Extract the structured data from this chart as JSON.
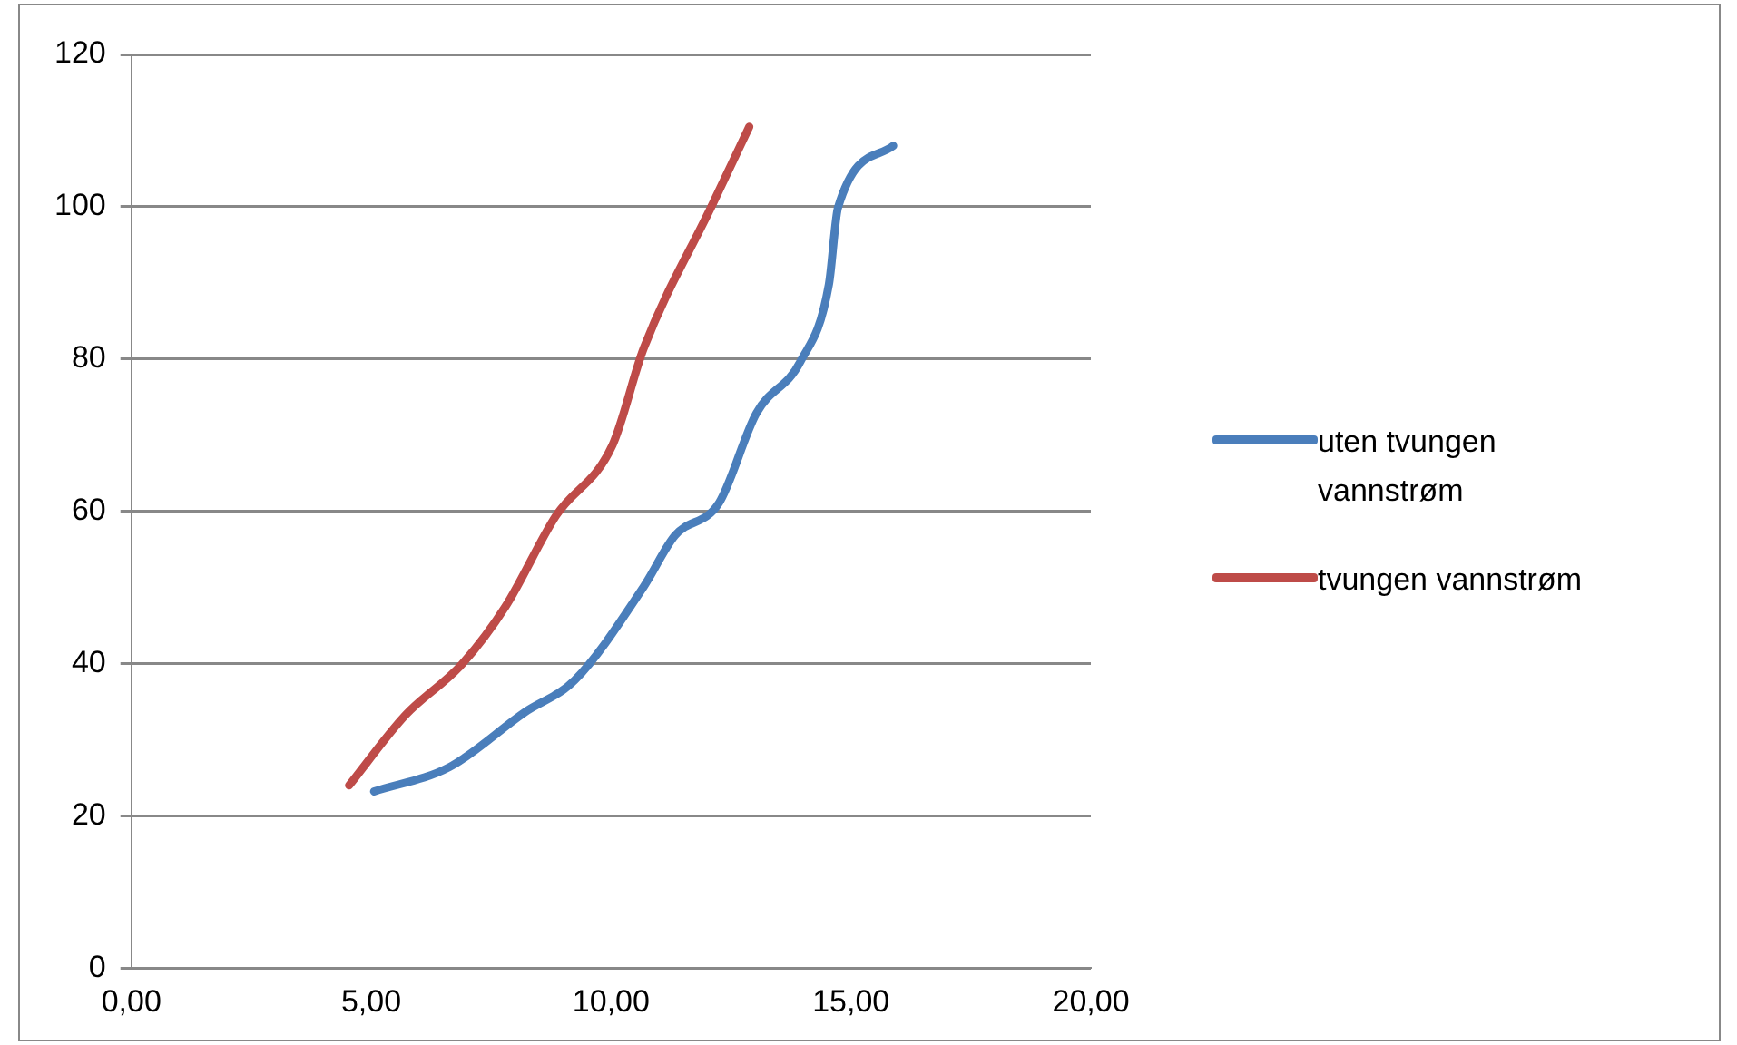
{
  "chart_data": {
    "type": "line",
    "xlim": [
      0,
      20
    ],
    "xticks": [
      {
        "value": 0,
        "label": "0,00"
      },
      {
        "value": 5,
        "label": "5,00"
      },
      {
        "value": 10,
        "label": "10,00"
      },
      {
        "value": 15,
        "label": "15,00"
      },
      {
        "value": 20,
        "label": "20,00"
      }
    ],
    "ylim": [
      0,
      120
    ],
    "yticks": [
      0,
      20,
      40,
      60,
      80,
      100,
      120
    ],
    "grid": "y",
    "legend": "right",
    "marker": "none",
    "line_style": "solid",
    "series": [
      {
        "name": "uten tvungen vannstrøm",
        "color": "#4a7ebb",
        "x": [
          5.06,
          6.63,
          8.2,
          9.24,
          10.68,
          11.33,
          12.25,
          13.03,
          13.95,
          14.54,
          14.73,
          15.88
        ],
        "values": [
          23.2,
          26.4,
          33.6,
          37.8,
          50.1,
          56.8,
          61.1,
          72.9,
          79.7,
          89.8,
          99.9,
          108
        ]
      },
      {
        "name": "tvungen vannstrøm",
        "color": "#be4b48",
        "x": [
          4.54,
          5.71,
          6.89,
          7.8,
          8.85,
          10.03,
          10.68,
          12.12,
          12.88
        ],
        "values": [
          24,
          33.2,
          39.9,
          47.5,
          59.4,
          68.7,
          81.4,
          100.4,
          110.5
        ]
      }
    ]
  }
}
